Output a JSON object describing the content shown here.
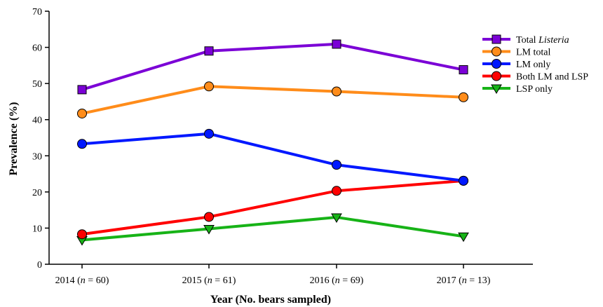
{
  "chart_data": {
    "type": "line",
    "title": "",
    "xlabel": "Year (No. bears sampled)",
    "ylabel": "Prevalence (%)",
    "ylim": [
      0,
      70
    ],
    "yticks": [
      0,
      10,
      20,
      30,
      40,
      50,
      60,
      70
    ],
    "categories": [
      {
        "year": "2014",
        "n": "60"
      },
      {
        "year": "2015",
        "n": "61"
      },
      {
        "year": "2016",
        "n": "69"
      },
      {
        "year": "2017",
        "n": "13"
      }
    ],
    "legend_position": "top-right",
    "grid": false,
    "series": [
      {
        "name": "Total",
        "name_italic": "Listeria",
        "marker": "square",
        "color": "#7B00D6",
        "values": [
          48.3,
          59.0,
          60.9,
          53.8
        ]
      },
      {
        "name": "LM total",
        "marker": "circle",
        "color": "#FF8C1A",
        "values": [
          41.7,
          49.2,
          47.8,
          46.2
        ]
      },
      {
        "name": "LM only",
        "marker": "circle",
        "color": "#0018FF",
        "values": [
          33.3,
          36.1,
          27.5,
          23.1
        ]
      },
      {
        "name": "Both LM and LSP",
        "marker": "circle",
        "color": "#FF0000",
        "values": [
          8.3,
          13.1,
          20.3,
          23.1
        ]
      },
      {
        "name": "LSP only",
        "marker": "triangle-down",
        "color": "#17B317",
        "values": [
          6.7,
          9.8,
          13.0,
          7.7
        ]
      }
    ]
  }
}
